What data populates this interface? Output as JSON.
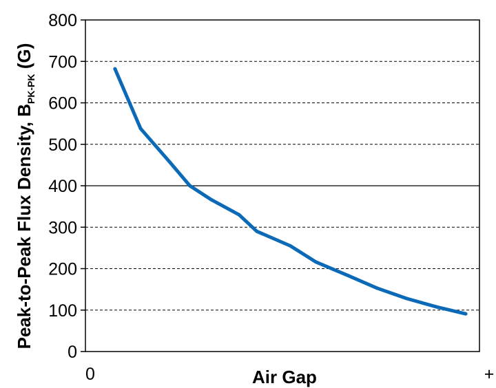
{
  "chart_data": {
    "type": "line",
    "xlabel": "Air Gap",
    "ylabel": {
      "main": "Peak-to-Peak Flux Density, B",
      "subscript": "PK-PK",
      "unit": " (G)"
    },
    "x_tick_labels": [
      "0",
      "+"
    ],
    "ylim": [
      0,
      800
    ],
    "yticks": [
      0,
      100,
      200,
      300,
      400,
      500,
      600,
      700,
      800
    ],
    "grid": {
      "solid": [
        400
      ],
      "dashed": [
        100,
        200,
        300,
        500,
        600,
        700
      ]
    },
    "xlim": [
      0,
      1
    ],
    "series": [
      {
        "color": "#0b6ab8",
        "x": [
          0.075,
          0.14,
          0.215,
          0.265,
          0.32,
          0.39,
          0.435,
          0.52,
          0.585,
          0.665,
          0.74,
          0.815,
          0.89,
          0.965
        ],
        "y": [
          682,
          538,
          456,
          400,
          366,
          330,
          290,
          255,
          216,
          184,
          153,
          128,
          108,
          91
        ]
      }
    ]
  }
}
